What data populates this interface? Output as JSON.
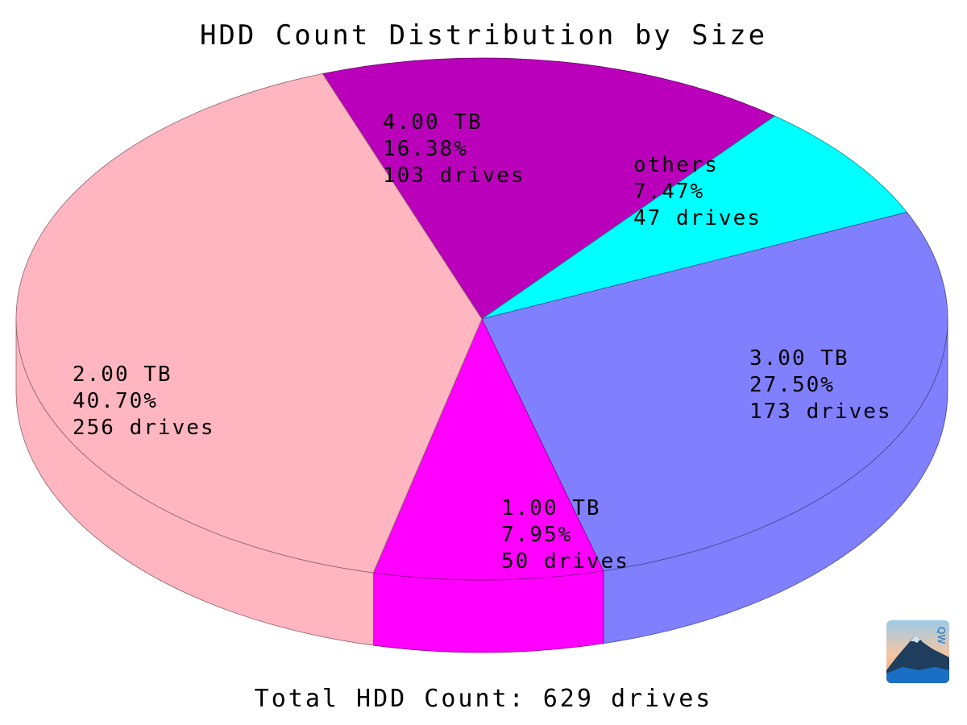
{
  "chart_data": {
    "type": "pie",
    "title": "HDD Count Distribution by Size",
    "footer": "Total HDD Count: 629 drives",
    "total": 629,
    "unit": "drives",
    "slices": [
      {
        "label": "4.00 TB",
        "percent": "16.38%",
        "count_text": "103 drives",
        "value": 103,
        "color": "#bb00bb"
      },
      {
        "label": "others",
        "percent": "7.47%",
        "count_text": "47 drives",
        "value": 47,
        "color": "#00ffff"
      },
      {
        "label": "3.00 TB",
        "percent": "27.50%",
        "count_text": "173 drives",
        "value": 173,
        "color": "#8080ff"
      },
      {
        "label": "1.00 TB",
        "percent": "7.95%",
        "count_text": "50 drives",
        "value": 50,
        "color": "#ff00ff"
      },
      {
        "label": "2.00 TB",
        "percent": "40.70%",
        "count_text": "256 drives",
        "value": 256,
        "color": "#ffb6c1"
      }
    ],
    "start_angle_deg": 250,
    "direction": "clockwise",
    "style": "3d-tilted"
  },
  "logo": {
    "icon": "mountain-logo-icon"
  }
}
